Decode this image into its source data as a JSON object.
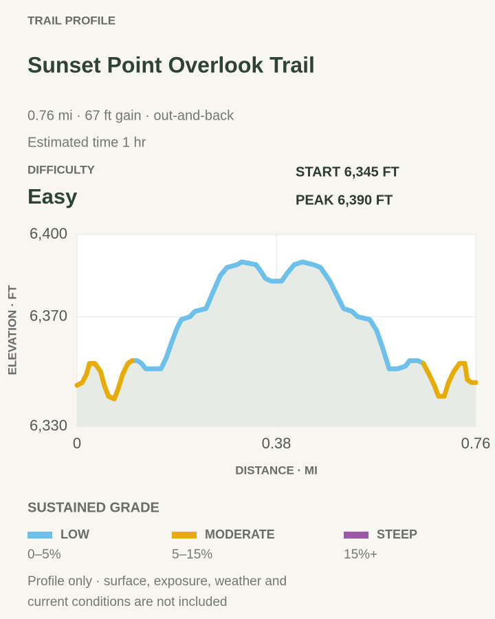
{
  "header": {
    "eyebrow": "TRAIL PROFILE",
    "title": "Sunset Point Overlook Trail",
    "meta": [
      "0.76 mi · 67 ft gain · out-and-back",
      "Estimated time 1 hr"
    ]
  },
  "difficulty": {
    "label": "DIFFICULTY",
    "value": "Easy"
  },
  "stats": [
    "START 6,345 FT",
    "PEAK 6,390 FT"
  ],
  "chart_data": {
    "type": "line",
    "xlabel": "DISTANCE · MI",
    "ylabel": "ELEVATION · FT",
    "xlim": [
      0,
      0.76
    ],
    "xticks": [
      0,
      0.38,
      0.76
    ],
    "ylim": [
      6330,
      6400
    ],
    "yticks": [
      {
        "value": 6330,
        "label": "6,330"
      },
      {
        "value": 6370,
        "label": "6,370"
      },
      {
        "value": 6400,
        "label": "6,400"
      }
    ],
    "grid": true,
    "area_color": "#e6ece5",
    "x": [
      0,
      0.01,
      0.018,
      0.024,
      0.034,
      0.045,
      0.052,
      0.06,
      0.071,
      0.079,
      0.087,
      0.097,
      0.105,
      0.115,
      0.123,
      0.131,
      0.144,
      0.16,
      0.17,
      0.181,
      0.191,
      0.199,
      0.215,
      0.225,
      0.246,
      0.257,
      0.273,
      0.286,
      0.305,
      0.314,
      0.341,
      0.349,
      0.359,
      0.37,
      0.39,
      0.401,
      0.414,
      0.43,
      0.451,
      0.464,
      0.482,
      0.495,
      0.508,
      0.524,
      0.535,
      0.558,
      0.571,
      0.582,
      0.595,
      0.611,
      0.626,
      0.634,
      0.65,
      0.66,
      0.671,
      0.681,
      0.689,
      0.7,
      0.708,
      0.718,
      0.729,
      0.739,
      0.744,
      0.752,
      0.76
    ],
    "legend_title": "SUSTAINED GRADE",
    "series": [
      {
        "name": "LOW",
        "range": "0–5%",
        "color": "#6cc0ea",
        "values": [
          null,
          null,
          null,
          null,
          null,
          null,
          null,
          null,
          null,
          null,
          null,
          null,
          6354,
          6354,
          6353,
          6351,
          6351,
          6351,
          6355,
          6361,
          6366,
          6369,
          6370,
          6372,
          6373,
          6378,
          6385,
          6388,
          6389,
          6390,
          6389,
          6387,
          6384,
          6383,
          6383,
          6386,
          6389,
          6390,
          6389,
          6388,
          6383,
          6378,
          6373,
          6372,
          6370,
          6369,
          6365,
          6359,
          6351,
          6351,
          6352,
          6354,
          6354,
          6353,
          null,
          null,
          null,
          null,
          null,
          null,
          null,
          null,
          null,
          null,
          null
        ]
      },
      {
        "name": "MODERATE",
        "range": "5–15%",
        "color": "#e8ac0a",
        "values": [
          6345,
          6346,
          6349,
          6353,
          6353,
          6350,
          6345,
          6341,
          6340,
          6344,
          6349,
          6353,
          6354,
          null,
          null,
          null,
          null,
          null,
          null,
          null,
          null,
          null,
          null,
          null,
          null,
          null,
          null,
          null,
          null,
          null,
          null,
          null,
          null,
          null,
          null,
          null,
          null,
          null,
          null,
          null,
          null,
          null,
          null,
          null,
          null,
          null,
          null,
          null,
          null,
          null,
          null,
          null,
          null,
          6353,
          6349,
          6345,
          6341,
          6341,
          6346,
          6350,
          6353,
          6353,
          6347,
          6346,
          6346
        ]
      },
      {
        "name": "STEEP",
        "range": "15%+",
        "color": "#9b59a8",
        "values": [
          null,
          null,
          null,
          null,
          null,
          null,
          null,
          null,
          null,
          null,
          null,
          null,
          null,
          null,
          null,
          null,
          null,
          null,
          null,
          null,
          null,
          null,
          null,
          null,
          null,
          null,
          null,
          null,
          null,
          null,
          null,
          null,
          null,
          null,
          null,
          null,
          null,
          null,
          null,
          null,
          null,
          null,
          null,
          null,
          null,
          null,
          null,
          null,
          null,
          null,
          null,
          null,
          null,
          null,
          null,
          null,
          null,
          null,
          null,
          null,
          null,
          null,
          null,
          null,
          null
        ]
      }
    ]
  },
  "note": [
    "Profile only · surface, exposure, weather and",
    "current conditions are not included"
  ]
}
